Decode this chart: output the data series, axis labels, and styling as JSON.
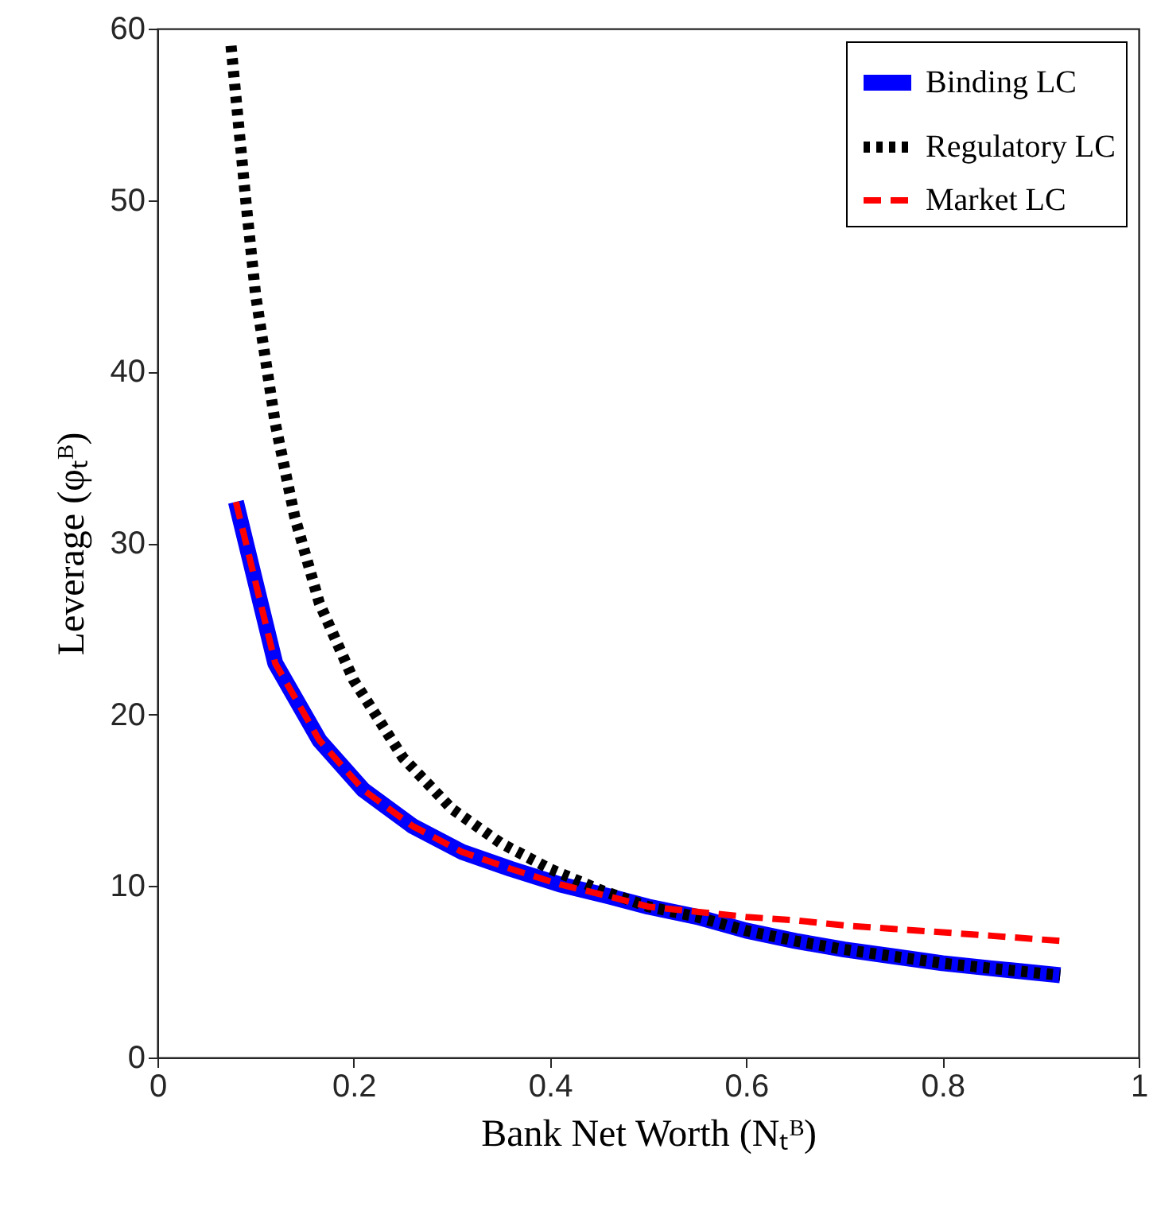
{
  "chart_data": {
    "type": "line",
    "xlabel": "Bank Net Worth (Nₜᴮ)",
    "ylabel": "Leverage (φₜᴮ)",
    "xlim": [
      0,
      1
    ],
    "ylim": [
      0,
      60
    ],
    "xticks": [
      0,
      0.2,
      0.4,
      0.6,
      0.8,
      1
    ],
    "yticks": [
      0,
      10,
      20,
      30,
      40,
      50,
      60
    ],
    "grid": false,
    "legend": "top right",
    "series": [
      {
        "name": "Binding LC",
        "color": "#0000ff",
        "line_style": "solid",
        "x": [
          0.08,
          0.12,
          0.165,
          0.21,
          0.26,
          0.31,
          0.36,
          0.41,
          0.46,
          0.5,
          0.55,
          0.6,
          0.65,
          0.7,
          0.75,
          0.8,
          0.85,
          0.92
        ],
        "values": [
          32.4,
          23,
          18.5,
          15.6,
          13.5,
          12,
          11,
          10.1,
          9.4,
          8.8,
          8.2,
          7.4,
          6.8,
          6.3,
          5.9,
          5.5,
          5.2,
          4.8
        ]
      },
      {
        "name": "Regulatory LC",
        "color": "#000000",
        "line_style": "dotted",
        "x": [
          0.075,
          0.09,
          0.1,
          0.12,
          0.14,
          0.165,
          0.2,
          0.25,
          0.3,
          0.35,
          0.4,
          0.45,
          0.5,
          0.55,
          0.6,
          0.65,
          0.7,
          0.75,
          0.8,
          0.85,
          0.92
        ],
        "values": [
          59,
          50,
          44.5,
          37,
          31.5,
          26.5,
          22,
          17.5,
          14.5,
          12.5,
          11,
          9.8,
          8.8,
          8.2,
          7.4,
          6.8,
          6.3,
          5.9,
          5.5,
          5.2,
          4.8
        ]
      },
      {
        "name": "Market LC",
        "color": "#ff0000",
        "line_style": "dashed",
        "x": [
          0.08,
          0.12,
          0.165,
          0.21,
          0.26,
          0.31,
          0.36,
          0.41,
          0.46,
          0.5,
          0.55,
          0.6,
          0.65,
          0.7,
          0.75,
          0.8,
          0.85,
          0.92
        ],
        "values": [
          32.4,
          23,
          18.5,
          15.6,
          13.5,
          12,
          11,
          10.1,
          9.4,
          8.8,
          8.5,
          8.2,
          8.0,
          7.7,
          7.5,
          7.3,
          7.1,
          6.8
        ]
      }
    ]
  }
}
